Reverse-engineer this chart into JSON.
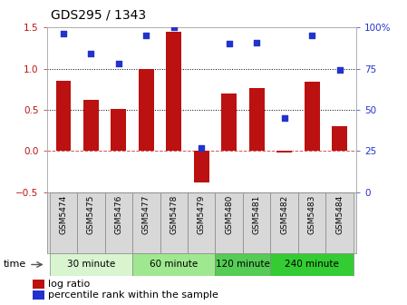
{
  "title": "GDS295 / 1343",
  "samples": [
    "GSM5474",
    "GSM5475",
    "GSM5476",
    "GSM5477",
    "GSM5478",
    "GSM5479",
    "GSM5480",
    "GSM5481",
    "GSM5482",
    "GSM5483",
    "GSM5484"
  ],
  "log_ratio": [
    0.85,
    0.62,
    0.51,
    1.0,
    1.45,
    -0.38,
    0.7,
    0.76,
    -0.02,
    0.84,
    0.3
  ],
  "percentile": [
    96,
    84,
    78,
    95,
    100,
    27,
    90,
    91,
    45,
    95,
    74
  ],
  "bar_color": "#bb1111",
  "dot_color": "#2233cc",
  "ylim_left": [
    -0.5,
    1.5
  ],
  "ylim_right": [
    0,
    100
  ],
  "yticks_left": [
    -0.5,
    0,
    0.5,
    1.0,
    1.5
  ],
  "yticks_right": [
    0,
    25,
    50,
    75,
    100
  ],
  "ytick_labels_right": [
    "0",
    "25",
    "50",
    "75",
    "100%"
  ],
  "hlines": [
    0.5,
    1.0
  ],
  "zero_line": 0,
  "groups": [
    {
      "label": "30 minute",
      "start": 0,
      "end": 3,
      "color": "#d8f5d0"
    },
    {
      "label": "60 minute",
      "start": 3,
      "end": 6,
      "color": "#a0e890"
    },
    {
      "label": "120 minute",
      "start": 6,
      "end": 8,
      "color": "#55cc55"
    },
    {
      "label": "240 minute",
      "start": 8,
      "end": 11,
      "color": "#33cc33"
    }
  ],
  "time_label": "time",
  "legend_bar_label": "log ratio",
  "legend_dot_label": "percentile rank within the sample",
  "bg_color": "#ffffff"
}
